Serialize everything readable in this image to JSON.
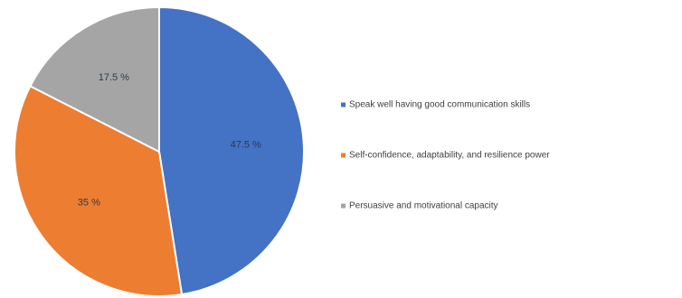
{
  "chart_data": {
    "type": "pie",
    "title": "",
    "start_angle_deg": 0,
    "direction": "clockwise",
    "legend_position": "right",
    "slices": [
      {
        "label": "Speak well having good communication skills",
        "value": 47.5,
        "value_label": "47.5 %",
        "color": "#4472c4"
      },
      {
        "label": "Self-confidence, adaptability, and resilience power",
        "value": 35,
        "value_label": "35 %",
        "color": "#ed7d31"
      },
      {
        "label": "Persuasive and motivational capacity",
        "value": 17.5,
        "value_label": "17.5 %",
        "color": "#a5a5a5"
      }
    ]
  }
}
